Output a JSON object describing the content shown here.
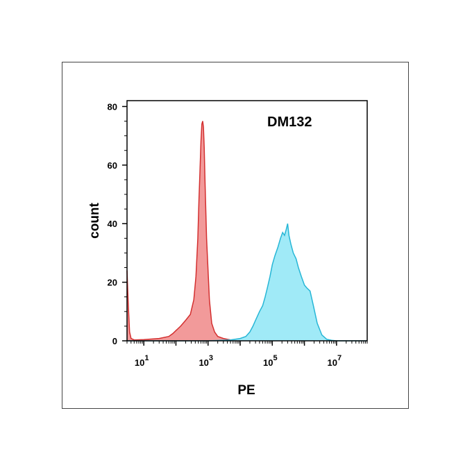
{
  "chart_data": {
    "type": "area",
    "title": "",
    "xlabel": "PE",
    "ylabel": "count",
    "x_scale": "log",
    "xlim": [
      3,
      90000000
    ],
    "ylim": [
      0,
      82
    ],
    "grid": false,
    "annotation": "DM132",
    "y_ticks": [
      {
        "value": 0,
        "label": "0"
      },
      {
        "value": 20,
        "label": "20"
      },
      {
        "value": 40,
        "label": "40"
      },
      {
        "value": 60,
        "label": "60"
      },
      {
        "value": 80,
        "label": "80"
      }
    ],
    "x_ticks": [
      {
        "value": 10,
        "base": "10",
        "exp": "1"
      },
      {
        "value": 1000,
        "base": "10",
        "exp": "3"
      },
      {
        "value": 100000,
        "base": "10",
        "exp": "5"
      },
      {
        "value": 10000000,
        "base": "10",
        "exp": "7"
      }
    ],
    "series": [
      {
        "color": "#f08888",
        "stroke": "#d32f2f",
        "x": [
          3,
          3.3,
          3.6,
          4,
          5,
          10,
          30,
          60,
          80,
          100,
          140,
          200,
          280,
          360,
          420,
          480,
          520,
          560,
          600,
          640,
          680,
          720,
          760,
          800,
          900,
          1100,
          1300,
          1600,
          2000,
          3000,
          5000,
          8000
        ],
        "y": [
          24,
          12,
          3,
          0.8,
          0.3,
          0.4,
          0.8,
          1.5,
          2.5,
          3.5,
          5,
          7,
          9,
          14,
          22,
          35,
          48,
          58,
          68,
          74,
          75,
          73,
          66,
          55,
          35,
          14,
          6,
          3,
          1.5,
          0.8,
          0.3,
          0
        ]
      },
      {
        "color": "#8fe6f6",
        "stroke": "#26b6d6",
        "x": [
          3,
          100,
          1000,
          5000,
          10000,
          15000,
          20000,
          25000,
          30000,
          40000,
          50000,
          60000,
          70000,
          85000,
          100000,
          120000,
          150000,
          180000,
          210000,
          240000,
          270000,
          300000,
          330000,
          380000,
          450000,
          550000,
          650000,
          800000,
          1000000,
          1200000,
          1500000,
          1900000,
          2500000,
          3500000,
          5000000,
          7000000,
          10000000,
          20000000,
          90000000
        ],
        "y": [
          0,
          0,
          0,
          0.3,
          0.8,
          1.5,
          3,
          5,
          7,
          10,
          12,
          15,
          18,
          22,
          26,
          29,
          32,
          35,
          37,
          36,
          38,
          40,
          36,
          33,
          30,
          28,
          25,
          22,
          19,
          18,
          17,
          12,
          6,
          2,
          0.5,
          0.2,
          0,
          0,
          0
        ]
      }
    ]
  }
}
